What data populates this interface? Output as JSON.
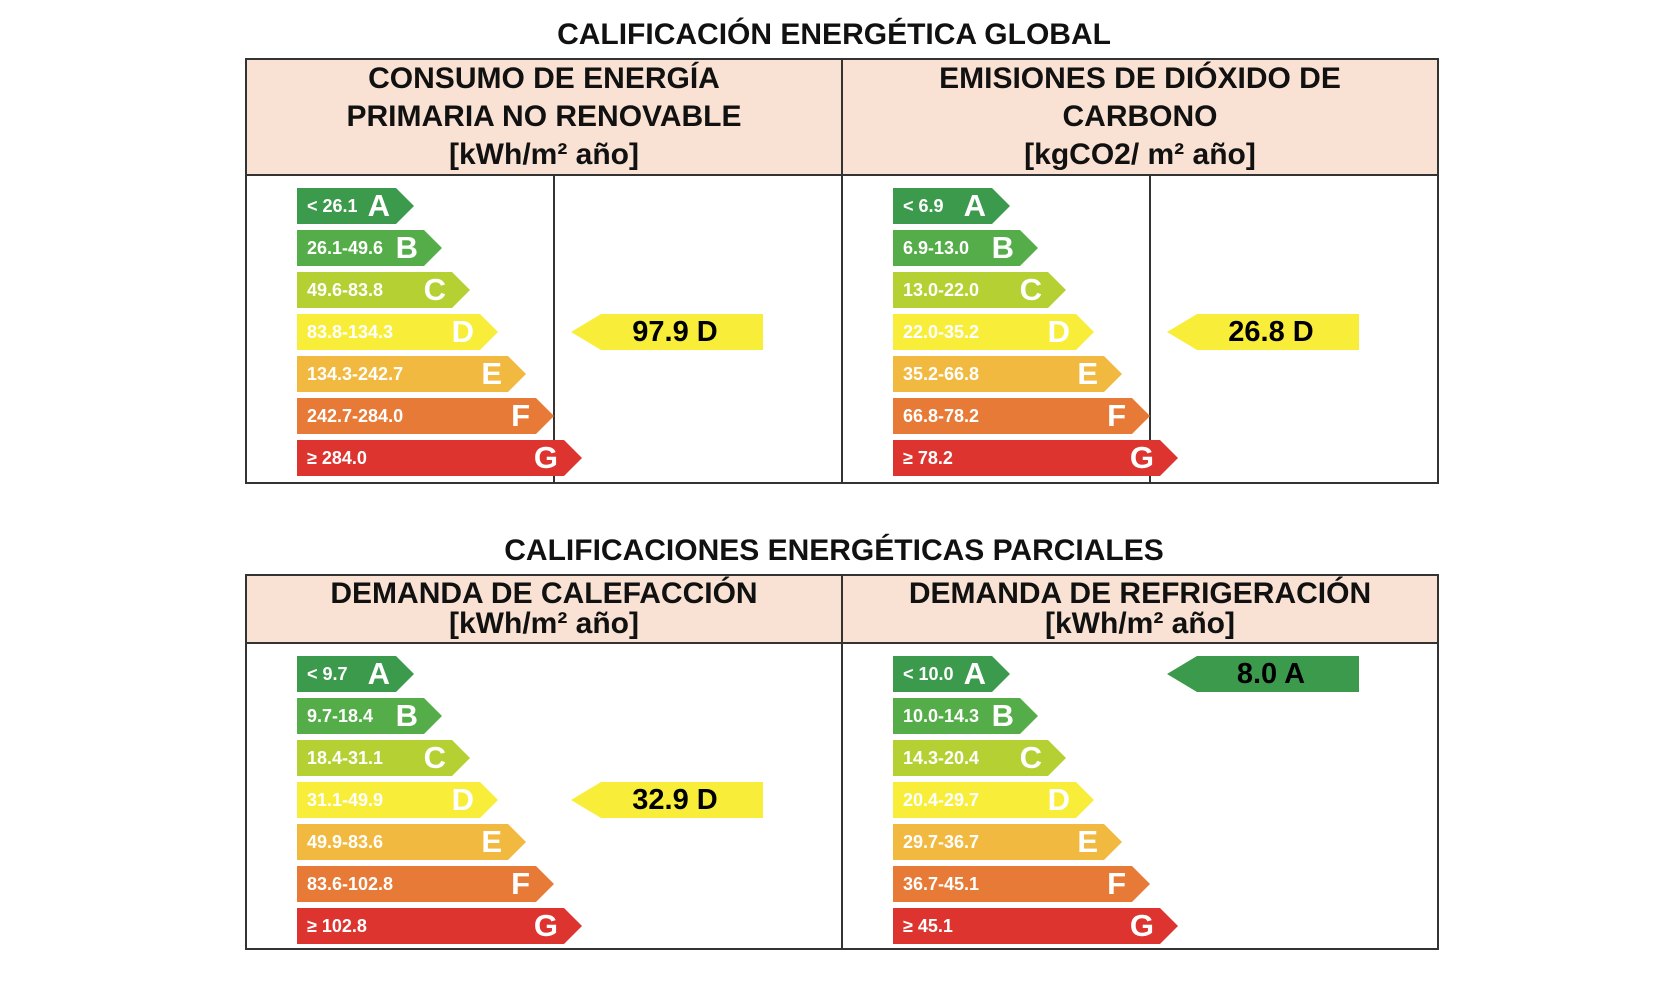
{
  "colors": {
    "A": "#3b9a4c",
    "B": "#54ad48",
    "C": "#b5d033",
    "D": "#f8ee3a",
    "E": "#f2b940",
    "F": "#e77a36",
    "G": "#de3430",
    "header_bg": "#f9e2d3",
    "border": "#333333"
  },
  "global": {
    "title": "CALIFICACIÓN ENERGÉTICA GLOBAL",
    "consumo": {
      "title": "CONSUMO DE ENERGÍA\nPRIMARIA NO RENOVABLE",
      "unit": "[kWh/m² año]",
      "bars": [
        {
          "range": "< 26.1",
          "letter": "A"
        },
        {
          "range": "26.1-49.6",
          "letter": "B"
        },
        {
          "range": "49.6-83.8",
          "letter": "C"
        },
        {
          "range": "83.8-134.3",
          "letter": "D"
        },
        {
          "range": "134.3-242.7",
          "letter": "E"
        },
        {
          "range": "242.7-284.0",
          "letter": "F"
        },
        {
          "range": "≥ 284.0",
          "letter": "G"
        }
      ],
      "result": {
        "text": "97.9 D",
        "class": "D"
      }
    },
    "emisiones": {
      "title": "EMISIONES DE DIÓXIDO DE\nCARBONO",
      "unit": "[kgCO2/ m² año]",
      "bars": [
        {
          "range": "< 6.9",
          "letter": "A"
        },
        {
          "range": "6.9-13.0",
          "letter": "B"
        },
        {
          "range": "13.0-22.0",
          "letter": "C"
        },
        {
          "range": "22.0-35.2",
          "letter": "D"
        },
        {
          "range": "35.2-66.8",
          "letter": "E"
        },
        {
          "range": "66.8-78.2",
          "letter": "F"
        },
        {
          "range": "≥ 78.2",
          "letter": "G"
        }
      ],
      "result": {
        "text": "26.8 D",
        "class": "D"
      }
    }
  },
  "parciales": {
    "title": "CALIFICACIONES ENERGÉTICAS PARCIALES",
    "calefaccion": {
      "title": "DEMANDA DE CALEFACCIÓN",
      "unit": "[kWh/m² año]",
      "bars": [
        {
          "range": "< 9.7",
          "letter": "A"
        },
        {
          "range": "9.7-18.4",
          "letter": "B"
        },
        {
          "range": "18.4-31.1",
          "letter": "C"
        },
        {
          "range": "31.1-49.9",
          "letter": "D"
        },
        {
          "range": "49.9-83.6",
          "letter": "E"
        },
        {
          "range": "83.6-102.8",
          "letter": "F"
        },
        {
          "range": "≥ 102.8",
          "letter": "G"
        }
      ],
      "result": {
        "text": "32.9 D",
        "class": "D"
      }
    },
    "refrigeracion": {
      "title": "DEMANDA DE REFRIGERACIÓN",
      "unit": "[kWh/m² año]",
      "bars": [
        {
          "range": "< 10.0",
          "letter": "A"
        },
        {
          "range": "10.0-14.3",
          "letter": "B"
        },
        {
          "range": "14.3-20.4",
          "letter": "C"
        },
        {
          "range": "20.4-29.7",
          "letter": "D"
        },
        {
          "range": "29.7-36.7",
          "letter": "E"
        },
        {
          "range": "36.7-45.1",
          "letter": "F"
        },
        {
          "range": "≥ 45.1",
          "letter": "G"
        }
      ],
      "result": {
        "text": "8.0 A",
        "class": "A"
      }
    }
  }
}
